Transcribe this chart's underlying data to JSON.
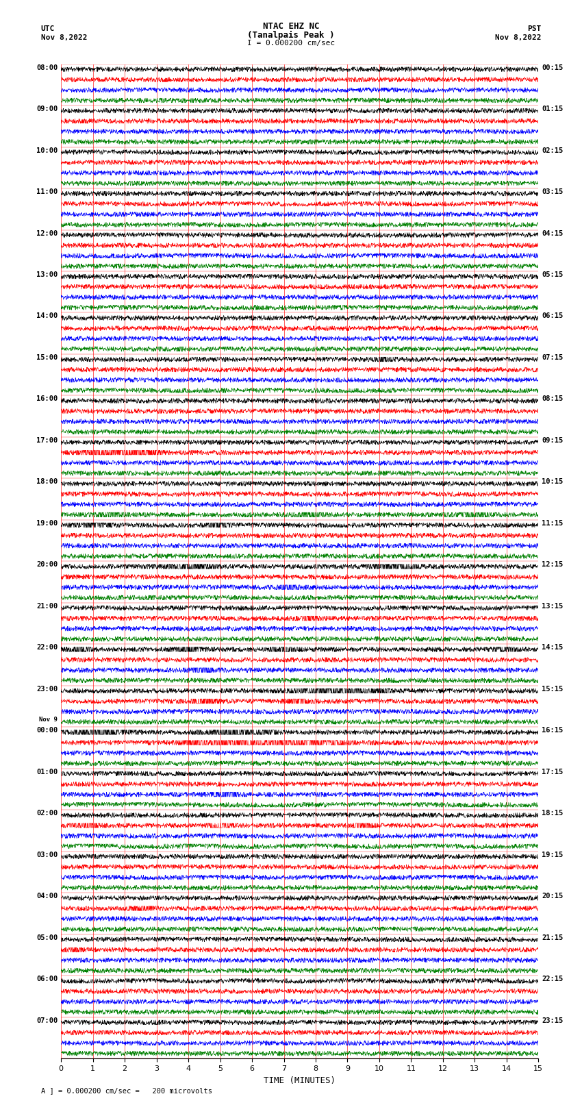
{
  "title_line1": "NTAC EHZ NC",
  "title_line2": "(Tanalpais Peak )",
  "title_scale": "I = 0.000200 cm/sec",
  "left_header_line1": "UTC",
  "left_header_line2": "Nov 8,2022",
  "right_header_line1": "PST",
  "right_header_line2": "Nov 8,2022",
  "xlabel": "TIME (MINUTES)",
  "footer": "A ] = 0.000200 cm/sec =   200 microvolts",
  "x_min": 0,
  "x_max": 15,
  "x_ticks": [
    0,
    1,
    2,
    3,
    4,
    5,
    6,
    7,
    8,
    9,
    10,
    11,
    12,
    13,
    14,
    15
  ],
  "left_labels_utc": [
    "08:00",
    "09:00",
    "10:00",
    "11:00",
    "12:00",
    "13:00",
    "14:00",
    "15:00",
    "16:00",
    "17:00",
    "18:00",
    "19:00",
    "20:00",
    "21:00",
    "22:00",
    "23:00",
    "Nov 9\n00:00",
    "01:00",
    "02:00",
    "03:00",
    "04:00",
    "05:00",
    "06:00",
    "07:00"
  ],
  "right_labels_pst": [
    "00:15",
    "01:15",
    "02:15",
    "03:15",
    "04:15",
    "05:15",
    "06:15",
    "07:15",
    "08:15",
    "09:15",
    "10:15",
    "11:15",
    "12:15",
    "13:15",
    "14:15",
    "15:15",
    "16:15",
    "17:15",
    "18:15",
    "19:15",
    "20:15",
    "21:15",
    "22:15",
    "23:15"
  ],
  "n_rows": 24,
  "traces_per_row": 4,
  "colors": [
    "black",
    "red",
    "blue",
    "green"
  ],
  "background_color": "white",
  "grid_color": "red",
  "seed": 42
}
